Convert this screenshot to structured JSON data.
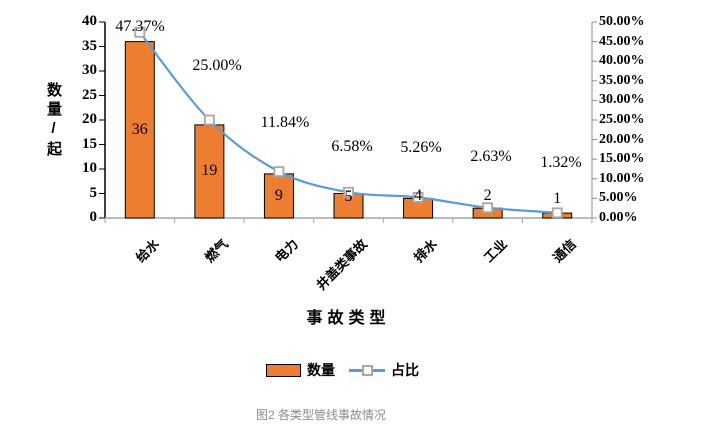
{
  "figure": {
    "caption": "图2 各类型管线事故情况"
  },
  "chart_data": {
    "type": "bar+line",
    "categories": [
      "给水",
      "燃气",
      "电力",
      "井盖类事故",
      "排水",
      "工业",
      "通信"
    ],
    "series": [
      {
        "name": "数量",
        "type": "bar",
        "axis": "left",
        "values": [
          36,
          19,
          9,
          5,
          4,
          2,
          1
        ],
        "value_labels": [
          "36",
          "19",
          "9",
          "5",
          "4",
          "2",
          "1"
        ]
      },
      {
        "name": "占比",
        "type": "line",
        "axis": "right",
        "values": [
          47.37,
          25.0,
          11.84,
          6.58,
          5.26,
          2.63,
          1.32
        ],
        "point_labels": [
          "47.37%",
          "25.00%",
          "11.84%",
          "6.58%",
          "5.26%",
          "2.63%",
          "1.32%"
        ]
      }
    ],
    "xlabel": "事故类型",
    "left_axis": {
      "title": "数量/起",
      "min": 0,
      "max": 40,
      "step": 5,
      "tick_labels": [
        "0",
        "5",
        "10",
        "15",
        "20",
        "25",
        "30",
        "35",
        "40"
      ]
    },
    "right_axis": {
      "min": 0,
      "max": 50,
      "step": 5,
      "tick_labels": [
        "0.00%",
        "5.00%",
        "10.00%",
        "15.00%",
        "20.00%",
        "25.00%",
        "30.00%",
        "35.00%",
        "40.00%",
        "45.00%",
        "50.00%"
      ]
    },
    "legend": {
      "position": "bottom",
      "items": [
        {
          "label": "数量",
          "marker": "orange-bar-swatch"
        },
        {
          "label": "占比",
          "marker": "blue-line-square-marker"
        }
      ]
    },
    "grid": false,
    "colors": {
      "bar_fill": "#ED7D31",
      "bar_border": "#000000",
      "line": "#5B9BD5",
      "marker_border": "#A6A6A6",
      "marker_fill": "#FFFFFF",
      "left_axis_line": "#000000",
      "bottom_axis_line": "#A6A6A6",
      "right_axis_line": "#8C8C8C",
      "text": "#000000",
      "caption_text": "#8C8C8C"
    }
  }
}
